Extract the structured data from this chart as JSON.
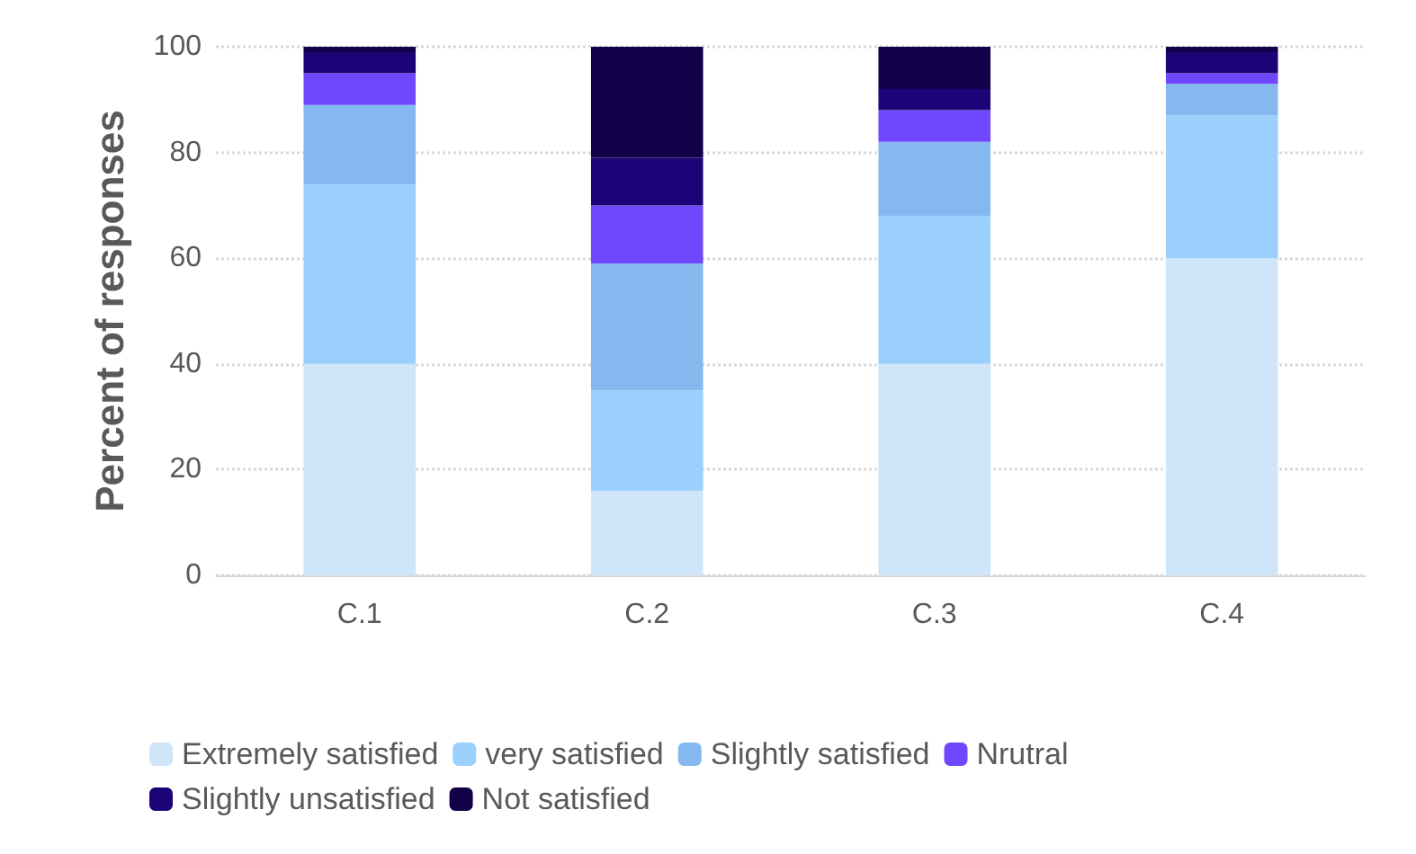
{
  "chart_data": {
    "type": "bar",
    "stacked": true,
    "ylabel": "Percent of responses",
    "categories": [
      "C.1",
      "C.2",
      "C.3",
      "C.4"
    ],
    "series": [
      {
        "name": "Extremely satisfied",
        "color": "#cfe5f9",
        "values": [
          40,
          16,
          40,
          60
        ]
      },
      {
        "name": "very satisfied",
        "color": "#9bd0fd",
        "values": [
          34,
          19,
          28,
          27
        ]
      },
      {
        "name": "Slightly satisfied",
        "color": "#86b8f0",
        "values": [
          15,
          24,
          14,
          6
        ]
      },
      {
        "name": "Nrutral",
        "color": "#7047fd",
        "values": [
          6,
          11,
          6,
          2
        ]
      },
      {
        "name": "Slightly unsatisfied",
        "color": "#1c0478",
        "values": [
          4,
          9,
          4,
          4
        ]
      },
      {
        "name": "Not satisfied",
        "color": "#120048",
        "values": [
          1,
          21,
          8,
          1
        ]
      }
    ],
    "ylim": [
      0,
      100
    ],
    "yticks": [
      0,
      20,
      40,
      60,
      80,
      100
    ],
    "grid": "y",
    "legend": "bottom"
  }
}
